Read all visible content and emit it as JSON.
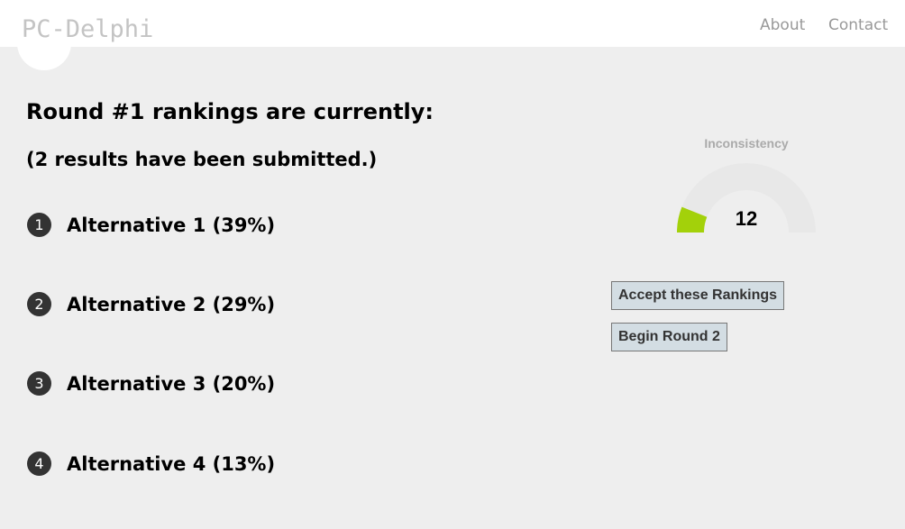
{
  "header": {
    "logo": "PC-Delphi",
    "nav": [
      {
        "label": "About"
      },
      {
        "label": "Contact"
      }
    ]
  },
  "main": {
    "title": "Round #1 rankings are currently:",
    "subtitle": "(2 results have been submitted.)",
    "rankings": [
      {
        "rank": "1",
        "label": "Alternative 1 (39%)"
      },
      {
        "rank": "2",
        "label": "Alternative 2 (29%)"
      },
      {
        "rank": "3",
        "label": "Alternative 3 (20%)"
      },
      {
        "rank": "4",
        "label": "Alternative 4 (13%)"
      }
    ]
  },
  "gauge": {
    "title": "Inconsistency",
    "value": "12",
    "min": 0,
    "max": 100,
    "fill_color": "#a3d10a",
    "track_color": "#e8e8e8"
  },
  "buttons": {
    "accept": "Accept these Rankings",
    "next_round": "Begin Round 2"
  }
}
